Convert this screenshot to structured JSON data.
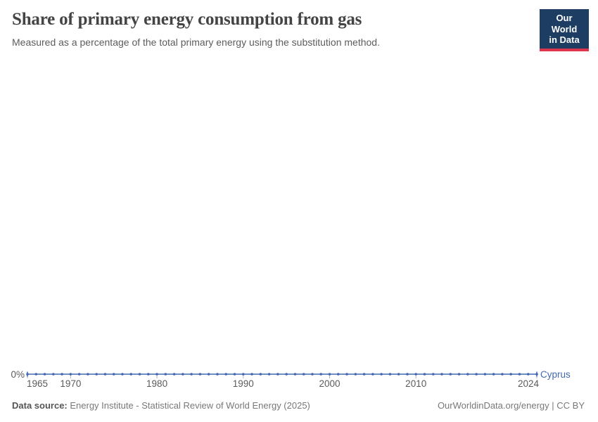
{
  "header": {
    "title": "Share of primary energy consumption from gas",
    "subtitle": "Measured as a percentage of the total primary energy using the substitution method.",
    "logo": {
      "line1": "Our World",
      "line2": "in Data",
      "bg_color": "#1d3d63",
      "bar_color": "#dc354d"
    }
  },
  "chart_data": {
    "type": "line",
    "title": "Share of primary energy consumption from gas",
    "xlabel": "",
    "ylabel": "",
    "xlim": [
      1965,
      2024
    ],
    "ylim": [
      0,
      0
    ],
    "grid": false,
    "legend_position": "right-of-line-end",
    "markers": true,
    "x_ticks": [
      1965,
      1970,
      1980,
      1990,
      2000,
      2010,
      2024
    ],
    "y_axis": {
      "label": "0%",
      "min": 0,
      "max": 0
    },
    "axis": {
      "tick_color": "#a8b4c4",
      "label_color": "#5b5b5b"
    },
    "series": [
      {
        "name": "Cyprus",
        "color": "#4268b3",
        "x": [
          1965,
          1966,
          1967,
          1968,
          1969,
          1970,
          1971,
          1972,
          1973,
          1974,
          1975,
          1976,
          1977,
          1978,
          1979,
          1980,
          1981,
          1982,
          1983,
          1984,
          1985,
          1986,
          1987,
          1988,
          1989,
          1990,
          1991,
          1992,
          1993,
          1994,
          1995,
          1996,
          1997,
          1998,
          1999,
          2000,
          2001,
          2002,
          2003,
          2004,
          2005,
          2006,
          2007,
          2008,
          2009,
          2010,
          2011,
          2012,
          2013,
          2014,
          2015,
          2016,
          2017,
          2018,
          2019,
          2020,
          2021,
          2022,
          2023,
          2024
        ],
        "values": [
          0,
          0,
          0,
          0,
          0,
          0,
          0,
          0,
          0,
          0,
          0,
          0,
          0,
          0,
          0,
          0,
          0,
          0,
          0,
          0,
          0,
          0,
          0,
          0,
          0,
          0,
          0,
          0,
          0,
          0,
          0,
          0,
          0,
          0,
          0,
          0,
          0,
          0,
          0,
          0,
          0,
          0,
          0,
          0,
          0,
          0,
          0,
          0,
          0,
          0,
          0,
          0,
          0,
          0,
          0,
          0,
          0,
          0,
          0,
          0
        ]
      }
    ]
  },
  "footer": {
    "datasource_label": "Data source:",
    "datasource_text": " Energy Institute - Statistical Review of World Energy (2025)",
    "url_text": "OurWorldinData.org/energy | CC BY"
  }
}
